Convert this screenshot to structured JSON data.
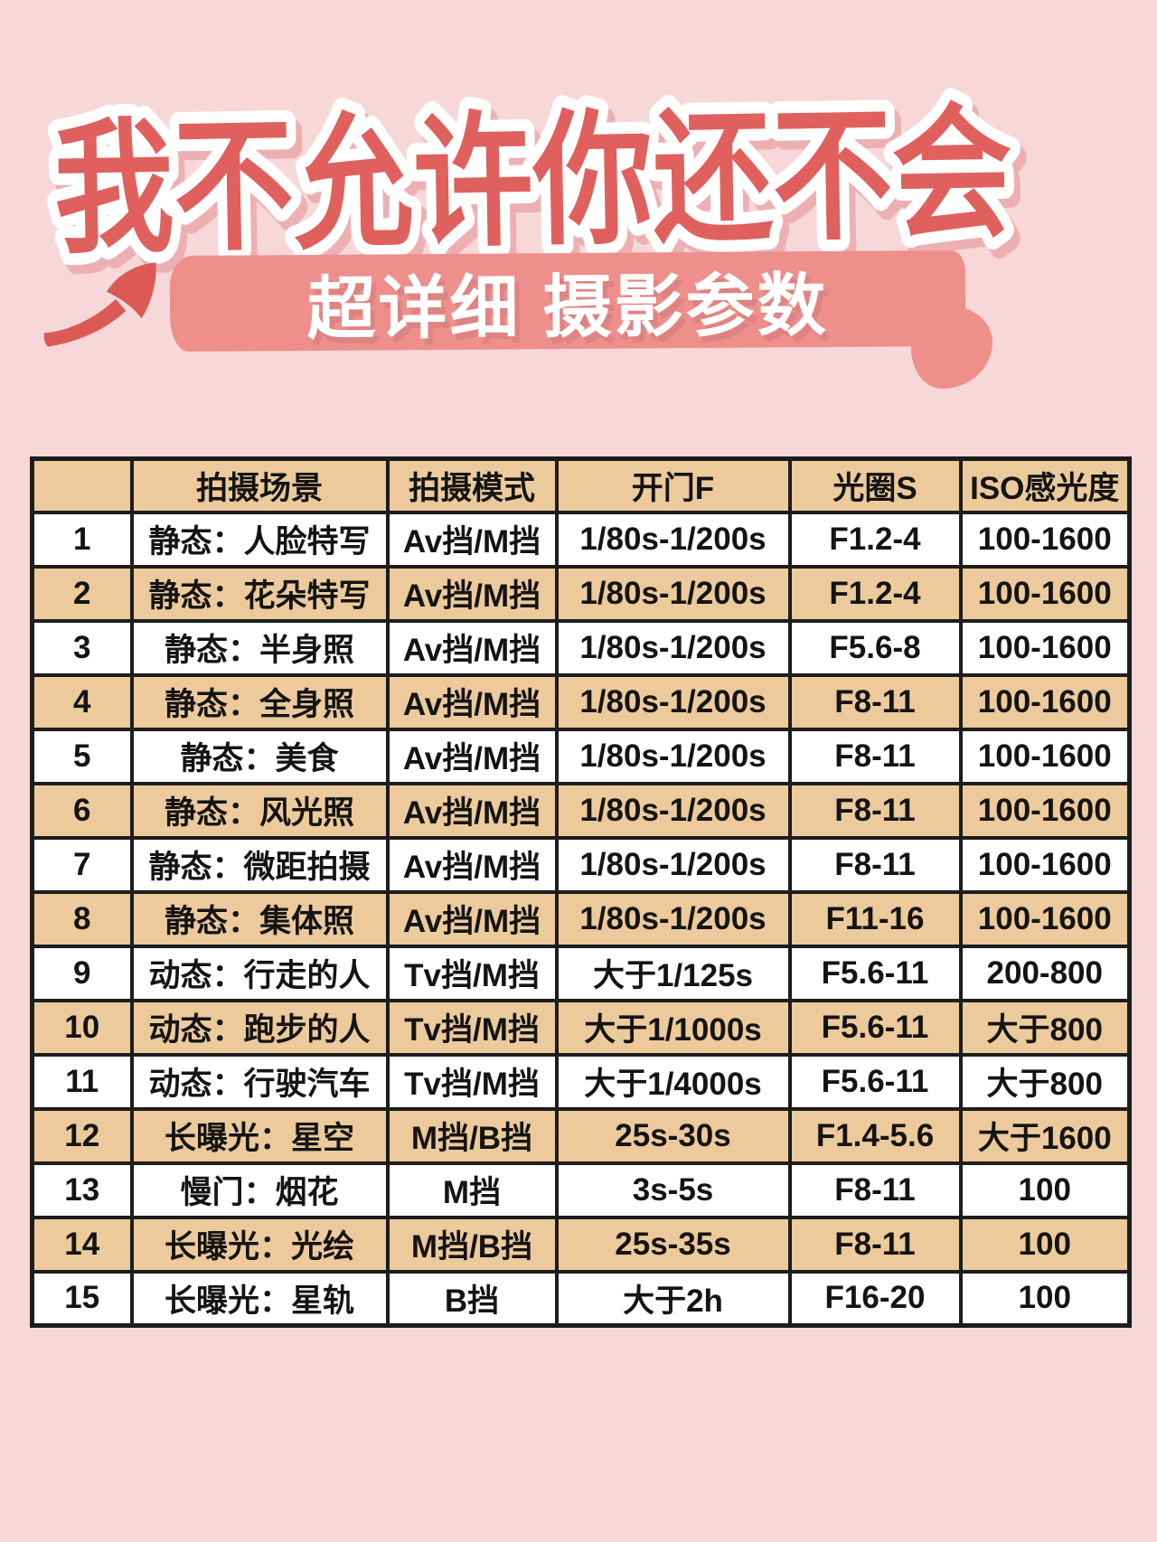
{
  "colors": {
    "page_bg": "#f8d7d8",
    "title_red": "#e0605e",
    "title_shadow": "#edb0b2",
    "banner_salmon": "#ee8f8c",
    "arrow_red": "#dc5a55",
    "table_tan": "#ecca9b",
    "table_white": "#ffffff",
    "table_border": "#1d1d1d",
    "table_text": "#141414"
  },
  "header": {
    "title": "我不允许你还不会",
    "subtitle": "超详细 摄影参数",
    "arrow_icon": "hand-drawn-arrow-up-right"
  },
  "table": {
    "columns": [
      "",
      "拍摄场景",
      "拍摄模式",
      "开门F",
      "光圈S",
      "ISO感光度"
    ],
    "rows": [
      {
        "num": "1",
        "scene": "静态：人脸特写",
        "mode": "Av挡/M挡",
        "shutter": "1/80s-1/200s",
        "aperture": "F1.2-4",
        "iso": "100-1600"
      },
      {
        "num": "2",
        "scene": "静态：花朵特写",
        "mode": "Av挡/M挡",
        "shutter": "1/80s-1/200s",
        "aperture": "F1.2-4",
        "iso": "100-1600"
      },
      {
        "num": "3",
        "scene": "静态：半身照",
        "mode": "Av挡/M挡",
        "shutter": "1/80s-1/200s",
        "aperture": "F5.6-8",
        "iso": "100-1600"
      },
      {
        "num": "4",
        "scene": "静态：全身照",
        "mode": "Av挡/M挡",
        "shutter": "1/80s-1/200s",
        "aperture": "F8-11",
        "iso": "100-1600"
      },
      {
        "num": "5",
        "scene": "静态：美食",
        "mode": "Av挡/M挡",
        "shutter": "1/80s-1/200s",
        "aperture": "F8-11",
        "iso": "100-1600"
      },
      {
        "num": "6",
        "scene": "静态：风光照",
        "mode": "Av挡/M挡",
        "shutter": "1/80s-1/200s",
        "aperture": "F8-11",
        "iso": "100-1600"
      },
      {
        "num": "7",
        "scene": "静态：微距拍摄",
        "mode": "Av挡/M挡",
        "shutter": "1/80s-1/200s",
        "aperture": "F8-11",
        "iso": "100-1600"
      },
      {
        "num": "8",
        "scene": "静态：集体照",
        "mode": "Av挡/M挡",
        "shutter": "1/80s-1/200s",
        "aperture": "F11-16",
        "iso": "100-1600"
      },
      {
        "num": "9",
        "scene": "动态：行走的人",
        "mode": "Tv挡/M挡",
        "shutter": "大于1/125s",
        "aperture": "F5.6-11",
        "iso": "200-800"
      },
      {
        "num": "10",
        "scene": "动态：跑步的人",
        "mode": "Tv挡/M挡",
        "shutter": "大于1/1000s",
        "aperture": "F5.6-11",
        "iso": "大于800"
      },
      {
        "num": "11",
        "scene": "动态：行驶汽车",
        "mode": "Tv挡/M挡",
        "shutter": "大于1/4000s",
        "aperture": "F5.6-11",
        "iso": "大于800"
      },
      {
        "num": "12",
        "scene": "长曝光：星空",
        "mode": "M挡/B挡",
        "shutter": "25s-30s",
        "aperture": "F1.4-5.6",
        "iso": "大于1600"
      },
      {
        "num": "13",
        "scene": "慢门：烟花",
        "mode": "M挡",
        "shutter": "3s-5s",
        "aperture": "F8-11",
        "iso": "100"
      },
      {
        "num": "14",
        "scene": "长曝光：光绘",
        "mode": "M挡/B挡",
        "shutter": "25s-35s",
        "aperture": "F8-11",
        "iso": "100"
      },
      {
        "num": "15",
        "scene": "长曝光：星轨",
        "mode": "B挡",
        "shutter": "大于2h",
        "aperture": "F16-20",
        "iso": "100"
      }
    ]
  }
}
